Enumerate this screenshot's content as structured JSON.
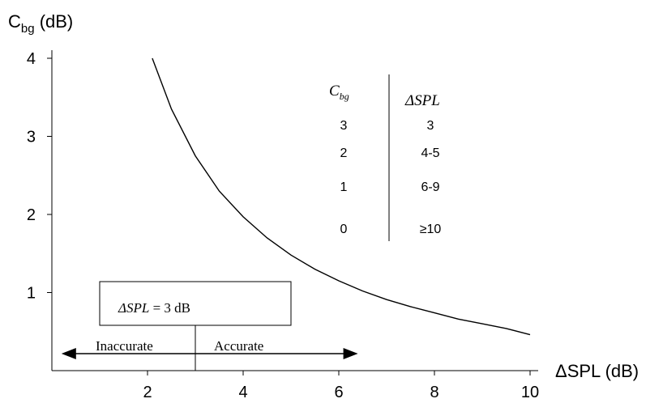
{
  "chart_data": {
    "type": "line",
    "xlabel": "ΔSPL (dB)",
    "ylabel_main": "C",
    "ylabel_sub": "bg",
    "ylabel_unit": " (dB)",
    "xlim": [
      0,
      10
    ],
    "ylim": [
      0,
      4
    ],
    "xticks": [
      "2",
      "4",
      "6",
      "8",
      "10"
    ],
    "yticks": [
      "1",
      "2",
      "3",
      "4"
    ],
    "grid": false,
    "series": [
      {
        "x": [
          2.1,
          2.5,
          3,
          3.5,
          4,
          4.5,
          5,
          5.5,
          6,
          6.5,
          7,
          7.5,
          8,
          8.5,
          9,
          9.5,
          10
        ],
        "y": [
          4.0,
          3.35,
          2.75,
          2.3,
          1.97,
          1.7,
          1.48,
          1.3,
          1.15,
          1.02,
          0.91,
          0.82,
          0.74,
          0.66,
          0.6,
          0.54,
          0.46
        ]
      }
    ],
    "table": {
      "header_left_main": "C",
      "header_left_sub": "bg",
      "header_right": "ΔSPL",
      "rows": [
        [
          "3",
          "3"
        ],
        [
          "2",
          "4-5"
        ],
        [
          "1",
          "6-9"
        ],
        [
          "0",
          "≥10"
        ]
      ]
    },
    "annotation": {
      "box_prefix": "ΔSPL",
      "box_suffix": " = 3 dB",
      "threshold_x": 3,
      "arrow_from_x": 0.2,
      "arrow_to_x": 6.4,
      "left_label": "Inaccurate",
      "right_label": "Accurate"
    }
  }
}
